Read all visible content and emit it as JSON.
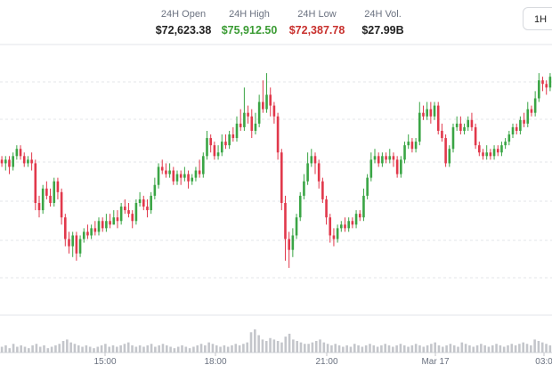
{
  "header": {
    "stats": [
      {
        "label": "24H Open",
        "value": "$72,623.38",
        "color": "#222222"
      },
      {
        "label": "24H High",
        "value": "$75,912.50",
        "color": "#3a9b33"
      },
      {
        "label": "24H Low",
        "value": "$72,387.78",
        "color": "#c8302d"
      },
      {
        "label": "24H Vol.",
        "value": "$27.99B",
        "color": "#222222"
      }
    ],
    "range_button": "1H"
  },
  "colors": {
    "up": "#3aa545",
    "down": "#e1384b",
    "grid": "#e3e5e8",
    "volume": "#c4c6cb"
  },
  "chart_data": {
    "type": "candlestick",
    "x_tick_labels": [
      "15:00",
      "18:00",
      "21:00",
      "Mar 17",
      "03:0"
    ],
    "candles": [
      [
        73900,
        73850,
        73950,
        73800
      ],
      [
        73850,
        73900,
        73950,
        73750
      ],
      [
        73900,
        73800,
        73950,
        73700
      ],
      [
        73800,
        73950,
        74000,
        73750
      ],
      [
        73950,
        74050,
        74100,
        73900
      ],
      [
        74050,
        73950,
        74100,
        73900
      ],
      [
        73950,
        73850,
        74000,
        73800
      ],
      [
        73850,
        73900,
        73950,
        73800
      ],
      [
        73900,
        73850,
        74000,
        73750
      ],
      [
        73850,
        73300,
        73900,
        73200
      ],
      [
        73300,
        73200,
        73400,
        73100
      ],
      [
        73200,
        73500,
        73550,
        73150
      ],
      [
        73500,
        73400,
        73600,
        73350
      ],
      [
        73400,
        73300,
        73500,
        73250
      ],
      [
        73300,
        73600,
        73650,
        73250
      ],
      [
        73600,
        73450,
        73650,
        73350
      ],
      [
        73450,
        73100,
        73500,
        73000
      ],
      [
        73100,
        72800,
        73150,
        72700
      ],
      [
        72800,
        72700,
        72900,
        72600
      ],
      [
        72700,
        72850,
        72900,
        72550
      ],
      [
        72850,
        72600,
        72900,
        72500
      ],
      [
        72600,
        72800,
        72850,
        72550
      ],
      [
        72800,
        72900,
        72950,
        72750
      ],
      [
        72900,
        72850,
        73000,
        72800
      ],
      [
        72850,
        72950,
        73000,
        72800
      ],
      [
        72950,
        72900,
        73050,
        72850
      ],
      [
        72900,
        73050,
        73100,
        72850
      ],
      [
        73050,
        72950,
        73100,
        72900
      ],
      [
        72950,
        73050,
        73150,
        72900
      ],
      [
        73050,
        73000,
        73150,
        72950
      ],
      [
        73000,
        73100,
        73200,
        73000
      ],
      [
        73100,
        73050,
        73200,
        72950
      ],
      [
        73050,
        73250,
        73300,
        73000
      ],
      [
        73250,
        73200,
        73350,
        73150
      ],
      [
        73200,
        73150,
        73300,
        73100
      ],
      [
        73150,
        73050,
        73200,
        72950
      ],
      [
        73050,
        73300,
        73350,
        73000
      ],
      [
        73300,
        73350,
        73450,
        73250
      ],
      [
        73350,
        73250,
        73400,
        73200
      ],
      [
        73250,
        73200,
        73350,
        73100
      ],
      [
        73200,
        73400,
        73450,
        73150
      ],
      [
        73400,
        73550,
        73650,
        73350
      ],
      [
        73550,
        73800,
        73850,
        73500
      ],
      [
        73800,
        73750,
        73900,
        73700
      ],
      [
        73750,
        73700,
        73850,
        73650
      ],
      [
        73700,
        73750,
        73850,
        73650
      ],
      [
        73750,
        73600,
        73800,
        73550
      ],
      [
        73600,
        73700,
        73750,
        73550
      ],
      [
        73700,
        73650,
        73750,
        73550
      ],
      [
        73650,
        73700,
        73800,
        73600
      ],
      [
        73700,
        73600,
        73750,
        73500
      ],
      [
        73600,
        73650,
        73700,
        73550
      ],
      [
        73650,
        73750,
        73800,
        73600
      ],
      [
        73750,
        73700,
        73900,
        73650
      ],
      [
        73700,
        73950,
        74000,
        73650
      ],
      [
        73950,
        74200,
        74300,
        73900
      ],
      [
        74200,
        74100,
        74250,
        74000
      ],
      [
        74100,
        73950,
        74150,
        73900
      ],
      [
        73950,
        74000,
        74100,
        73900
      ],
      [
        74000,
        74150,
        74250,
        73950
      ],
      [
        74150,
        74100,
        74250,
        74050
      ],
      [
        74100,
        74250,
        74300,
        74050
      ],
      [
        74250,
        74200,
        74350,
        74150
      ],
      [
        74200,
        74400,
        74500,
        74150
      ],
      [
        74400,
        74350,
        74600,
        74300
      ],
      [
        74350,
        74550,
        74900,
        74300
      ],
      [
        74550,
        74500,
        74650,
        74400
      ],
      [
        74500,
        74300,
        74600,
        74200
      ],
      [
        74300,
        74400,
        74550,
        74250
      ],
      [
        74400,
        74700,
        74800,
        74350
      ],
      [
        74700,
        74600,
        75000,
        74550
      ],
      [
        74600,
        74800,
        75100,
        74550
      ],
      [
        74800,
        74650,
        74900,
        74500
      ],
      [
        74650,
        74500,
        74700,
        74400
      ],
      [
        74500,
        74000,
        74550,
        73900
      ],
      [
        74000,
        73300,
        74050,
        73200
      ],
      [
        73300,
        72800,
        73400,
        72500
      ],
      [
        72800,
        72650,
        72900,
        72400
      ],
      [
        72650,
        72850,
        72950,
        72550
      ],
      [
        72850,
        73100,
        73150,
        72800
      ],
      [
        73100,
        73400,
        73450,
        73050
      ],
      [
        73400,
        73600,
        73700,
        73350
      ],
      [
        73600,
        73850,
        74000,
        73550
      ],
      [
        73850,
        73950,
        74050,
        73800
      ],
      [
        73950,
        73850,
        74000,
        73700
      ],
      [
        73850,
        73600,
        73900,
        73500
      ],
      [
        73600,
        73350,
        73650,
        73300
      ],
      [
        73350,
        73100,
        73400,
        73000
      ],
      [
        73100,
        72850,
        73150,
        72750
      ],
      [
        72850,
        72800,
        72950,
        72700
      ],
      [
        72800,
        72950,
        73000,
        72750
      ],
      [
        72950,
        73000,
        73050,
        72900
      ],
      [
        73000,
        72950,
        73100,
        72900
      ],
      [
        72950,
        73050,
        73100,
        72900
      ],
      [
        73050,
        73000,
        73100,
        72950
      ],
      [
        73000,
        73150,
        73200,
        72950
      ],
      [
        73150,
        73100,
        73200,
        73050
      ],
      [
        73100,
        73400,
        73500,
        73050
      ],
      [
        73400,
        73650,
        73700,
        73350
      ],
      [
        73650,
        73900,
        74000,
        73600
      ],
      [
        73900,
        73950,
        74050,
        73850
      ],
      [
        73950,
        73850,
        74000,
        73800
      ],
      [
        73850,
        73950,
        74000,
        73800
      ],
      [
        73950,
        73900,
        74000,
        73850
      ],
      [
        73900,
        73950,
        74050,
        73850
      ],
      [
        73950,
        73900,
        74000,
        73800
      ],
      [
        73900,
        73700,
        73950,
        73650
      ],
      [
        73700,
        73900,
        73950,
        73650
      ],
      [
        73900,
        74100,
        74150,
        73850
      ],
      [
        74100,
        74150,
        74250,
        74050
      ],
      [
        74150,
        74050,
        74200,
        74000
      ],
      [
        74050,
        74150,
        74200,
        74000
      ],
      [
        74150,
        74550,
        74700,
        74100
      ],
      [
        74550,
        74500,
        74650,
        74450
      ],
      [
        74500,
        74600,
        74700,
        74450
      ],
      [
        74600,
        74500,
        74700,
        74400
      ],
      [
        74500,
        74650,
        74700,
        74450
      ],
      [
        74650,
        74300,
        74700,
        74250
      ],
      [
        74300,
        74200,
        74400,
        74150
      ],
      [
        74200,
        73850,
        74250,
        73800
      ],
      [
        73850,
        74050,
        74100,
        73800
      ],
      [
        74050,
        74350,
        74400,
        74000
      ],
      [
        74350,
        74400,
        74500,
        74300
      ],
      [
        74400,
        74300,
        74500,
        74250
      ],
      [
        74300,
        74350,
        74400,
        74250
      ],
      [
        74350,
        74450,
        74500,
        74300
      ],
      [
        74450,
        74350,
        74550,
        74300
      ],
      [
        74350,
        74100,
        74400,
        74050
      ],
      [
        74100,
        74000,
        74150,
        73950
      ],
      [
        74000,
        73950,
        74050,
        73900
      ],
      [
        73950,
        74000,
        74100,
        73900
      ],
      [
        74000,
        73950,
        74050,
        73900
      ],
      [
        73950,
        74050,
        74100,
        73900
      ],
      [
        74050,
        74000,
        74100,
        73950
      ],
      [
        74000,
        74100,
        74150,
        73950
      ],
      [
        74100,
        74150,
        74200,
        74050
      ],
      [
        74150,
        74250,
        74300,
        74100
      ],
      [
        74250,
        74350,
        74400,
        74200
      ],
      [
        74350,
        74300,
        74400,
        74250
      ],
      [
        74300,
        74450,
        74500,
        74250
      ],
      [
        74450,
        74400,
        74550,
        74350
      ],
      [
        74400,
        74600,
        74700,
        74350
      ],
      [
        74600,
        74550,
        74650,
        74500
      ],
      [
        74550,
        74750,
        74850,
        74500
      ],
      [
        74750,
        75000,
        75100,
        74700
      ],
      [
        75000,
        74950,
        75050,
        74850
      ],
      [
        74950,
        74900,
        75000,
        74800
      ],
      [
        74900,
        75050,
        75100,
        74850
      ]
    ],
    "volumes": [
      4,
      5,
      3,
      6,
      4,
      5,
      4,
      3,
      5,
      6,
      4,
      5,
      3,
      4,
      5,
      6,
      8,
      9,
      7,
      6,
      5,
      4,
      5,
      4,
      3,
      4,
      5,
      6,
      4,
      5,
      4,
      5,
      6,
      7,
      5,
      4,
      5,
      4,
      5,
      6,
      4,
      5,
      6,
      5,
      4,
      3,
      4,
      5,
      4,
      3,
      4,
      5,
      6,
      5,
      7,
      6,
      5,
      4,
      5,
      4,
      5,
      6,
      5,
      6,
      7,
      14,
      16,
      12,
      9,
      8,
      10,
      9,
      8,
      7,
      11,
      13,
      9,
      8,
      7,
      6,
      6,
      7,
      8,
      9,
      7,
      6,
      5,
      6,
      5,
      4,
      5,
      4,
      6,
      5,
      4,
      5,
      6,
      5,
      4,
      5,
      6,
      5,
      4,
      5,
      6,
      5,
      4,
      5,
      6,
      5,
      4,
      5,
      6,
      7,
      5,
      4,
      5,
      6,
      5,
      4,
      7,
      6,
      5,
      4,
      5,
      6,
      5,
      4,
      5,
      6,
      5,
      4,
      5,
      6,
      5,
      6,
      7,
      6,
      5,
      9,
      8,
      7,
      6,
      5
    ]
  }
}
